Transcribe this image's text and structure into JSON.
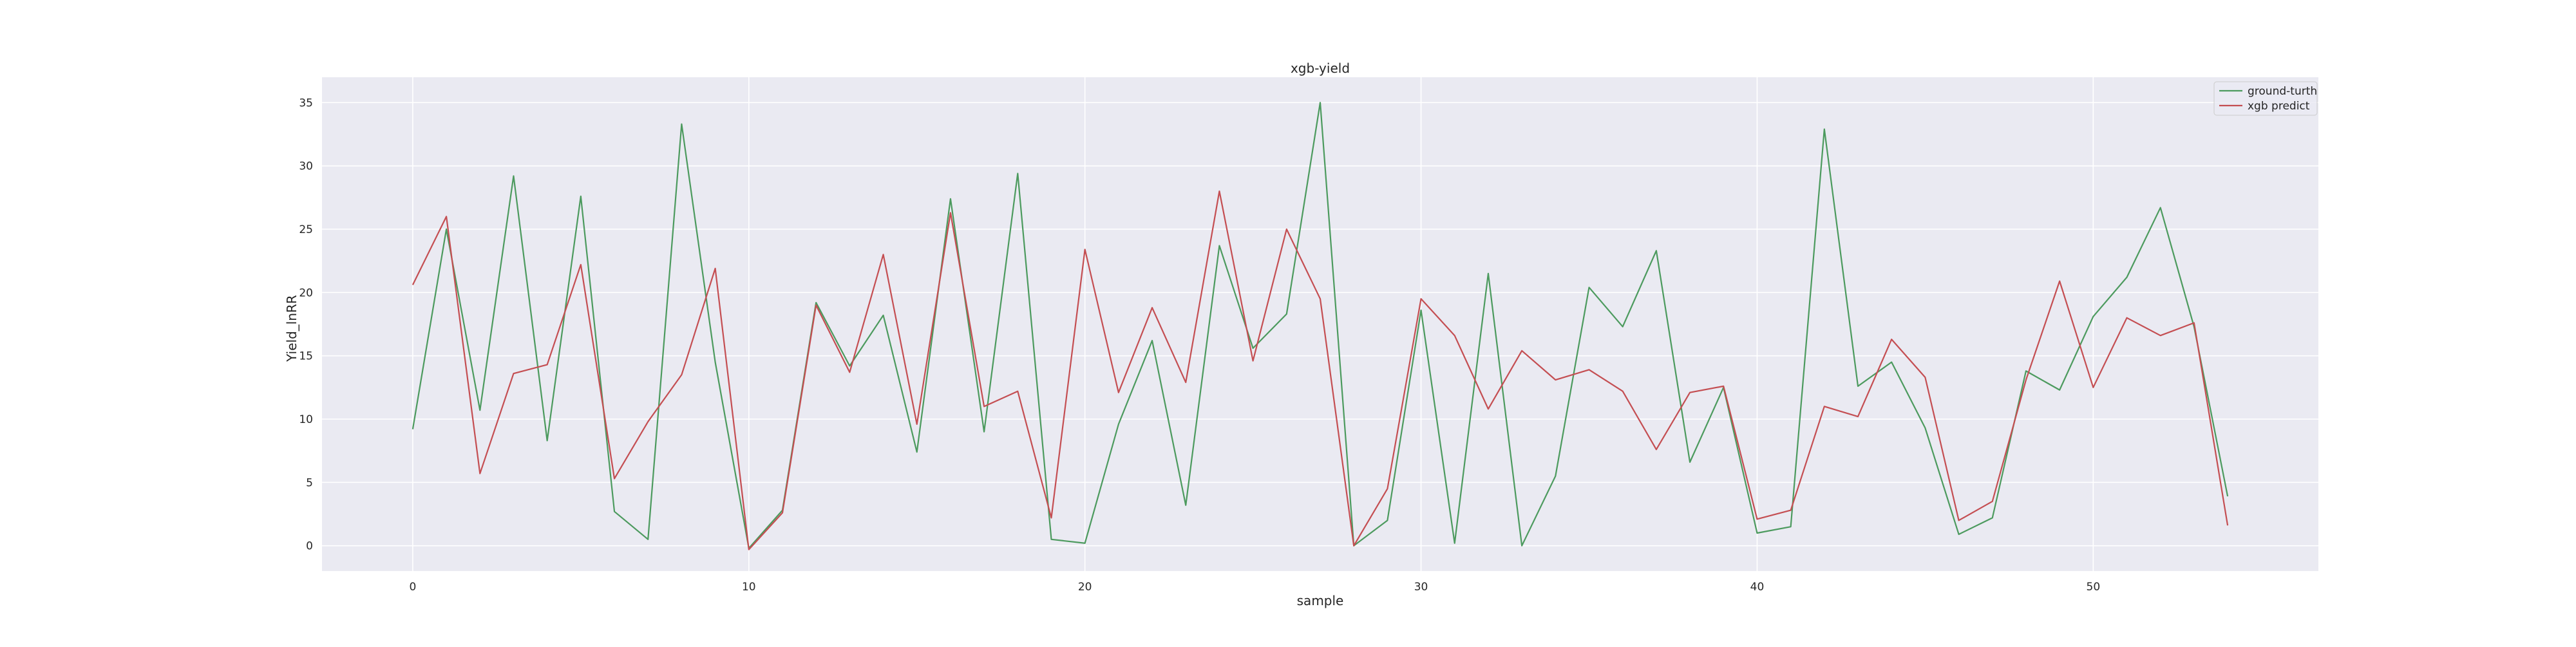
{
  "chart_data": {
    "type": "line",
    "title": "xgb-yield",
    "xlabel": "sample",
    "ylabel": "Yield_lnRR",
    "xlim": [
      -2.7,
      56.7
    ],
    "ylim": [
      -2,
      37
    ],
    "x_ticks": [
      0,
      10,
      20,
      30,
      40,
      50
    ],
    "y_ticks": [
      0,
      5,
      10,
      15,
      20,
      25,
      30,
      35
    ],
    "x_tick_labels": [
      "0",
      "10",
      "20",
      "30",
      "40",
      "50"
    ],
    "y_tick_labels": [
      "0",
      "5",
      "10",
      "15",
      "20",
      "25",
      "30",
      "35"
    ],
    "grid": true,
    "legend_position": "top-right",
    "background_color": "#eaeaf2",
    "grid_color": "#ffffff",
    "x": [
      0,
      1,
      2,
      3,
      4,
      5,
      6,
      7,
      8,
      9,
      10,
      11,
      12,
      13,
      14,
      15,
      16,
      17,
      18,
      19,
      20,
      21,
      22,
      23,
      24,
      25,
      26,
      27,
      28,
      29,
      30,
      31,
      32,
      33,
      34,
      35,
      36,
      37,
      38,
      39,
      40,
      41,
      42,
      43,
      44,
      45,
      46,
      47,
      48,
      49,
      50,
      51,
      52,
      53,
      54
    ],
    "series": [
      {
        "name": "ground-turth",
        "color": "#4c9a5e",
        "values": [
          9.2,
          25.0,
          10.7,
          29.2,
          8.3,
          27.6,
          2.7,
          0.5,
          33.3,
          14.5,
          -0.2,
          2.8,
          19.2,
          14.2,
          18.2,
          7.4,
          27.4,
          9.0,
          29.4,
          0.5,
          0.2,
          9.6,
          16.2,
          3.2,
          23.7,
          15.6,
          18.3,
          35.0,
          0.0,
          2.0,
          18.6,
          0.2,
          21.5,
          0.0,
          5.5,
          20.4,
          17.3,
          23.3,
          6.6,
          12.5,
          1.0,
          1.5,
          32.9,
          12.6,
          14.5,
          9.3,
          0.9,
          2.2,
          13.8,
          12.3,
          18.1,
          21.2,
          26.7,
          17.3,
          3.9
        ]
      },
      {
        "name": "xgb predict",
        "color": "#c44e52",
        "values": [
          20.6,
          26.0,
          5.7,
          13.6,
          14.3,
          22.2,
          5.3,
          9.8,
          13.5,
          21.9,
          -0.3,
          2.6,
          19.0,
          13.7,
          23.0,
          9.6,
          26.3,
          11.0,
          12.2,
          2.2,
          23.4,
          12.1,
          18.8,
          12.9,
          28.0,
          14.6,
          25.0,
          19.5,
          0.0,
          4.5,
          19.5,
          16.6,
          10.8,
          15.4,
          13.1,
          13.9,
          12.2,
          7.6,
          12.1,
          12.6,
          2.1,
          2.8,
          11.0,
          10.2,
          16.3,
          13.3,
          2.0,
          3.5,
          13.1,
          20.9,
          12.5,
          18.0,
          16.6,
          17.6,
          1.6
        ]
      }
    ]
  }
}
